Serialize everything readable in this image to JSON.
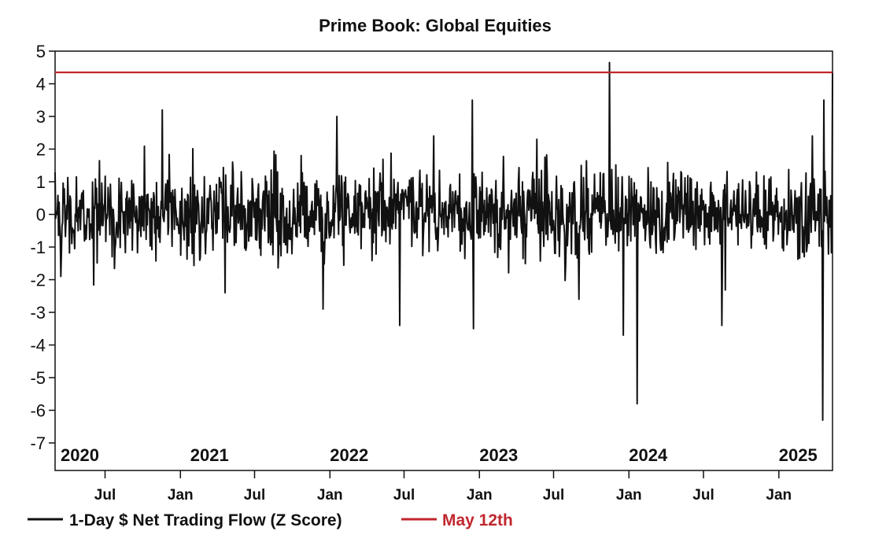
{
  "chart_data": {
    "type": "line",
    "title": "Prime Book: Global Equities",
    "xlabel": "",
    "ylabel": "",
    "ylim": [
      -7,
      5
    ],
    "yticks": [
      5,
      4,
      3,
      2,
      1,
      0,
      -1,
      -2,
      -3,
      -4,
      -5,
      -6,
      -7
    ],
    "x_start": "2020-03",
    "x_end": "2025-05-12",
    "year_labels": [
      "2020",
      "2021",
      "2022",
      "2023",
      "2024",
      "2025"
    ],
    "month_labels": [
      "Jul",
      "Jan",
      "Jul",
      "Jan",
      "Jul",
      "Jan",
      "Jul",
      "Jan",
      "Jul",
      "Jan"
    ],
    "grid": false,
    "legend": "bottom-left",
    "series": [
      {
        "name": "1-Day $ Net Trading Flow (Z Score)",
        "color": "#111111",
        "notable_points": [
          {
            "x": "2020-03",
            "y": -1.9
          },
          {
            "x": "2020-11",
            "y": 3.2
          },
          {
            "x": "2021-04",
            "y": -2.4
          },
          {
            "x": "2021-12",
            "y": -2.9
          },
          {
            "x": "2022-01",
            "y": 3.0
          },
          {
            "x": "2022-06",
            "y": -3.4
          },
          {
            "x": "2022-12",
            "y": 3.5
          },
          {
            "x": "2022-12",
            "y": -3.5
          },
          {
            "x": "2023-05",
            "y": 2.3
          },
          {
            "x": "2023-11",
            "y": 4.65
          },
          {
            "x": "2023-12",
            "y": -3.7
          },
          {
            "x": "2024-01",
            "y": -5.8
          },
          {
            "x": "2024-08",
            "y": -3.4
          },
          {
            "x": "2025-04",
            "y": -6.3
          },
          {
            "x": "2025-04",
            "y": 3.5
          },
          {
            "x": "2025-05",
            "y": 4.35
          }
        ]
      },
      {
        "name": "May 12th",
        "color": "#c0272d",
        "value": 4.35
      }
    ]
  }
}
